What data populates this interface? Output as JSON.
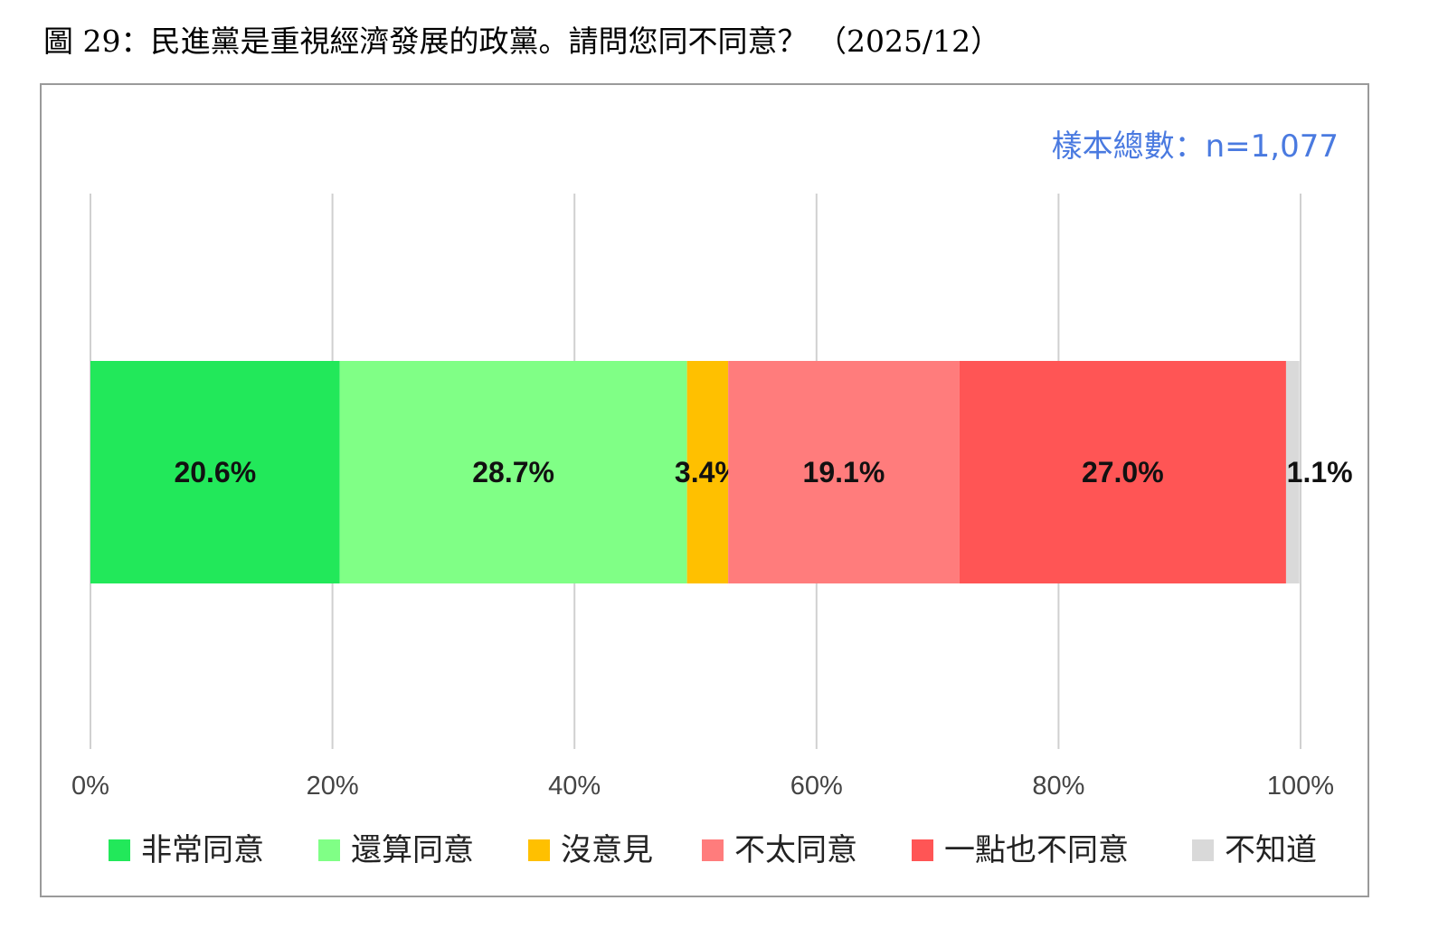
{
  "title": "圖 29：民進黨是重視經濟發展的政黨。請問您同不同意？ （2025/12）",
  "sample_label": "樣本總數：n=1,077",
  "chart_data": {
    "type": "bar",
    "orientation": "horizontal",
    "stacked": true,
    "xlim": [
      0,
      100
    ],
    "x_ticks": [
      "0%",
      "20%",
      "40%",
      "60%",
      "80%",
      "100%"
    ],
    "grid": true,
    "legend_position": "bottom",
    "series": [
      {
        "name": "非常同意",
        "value": 20.6,
        "label": "20.6%",
        "color": "#22e85a"
      },
      {
        "name": "還算同意",
        "value": 28.7,
        "label": "28.7%",
        "color": "#80ff86"
      },
      {
        "name": "沒意見",
        "value": 3.4,
        "label": "3.4%",
        "color": "#ffc000"
      },
      {
        "name": "不太同意",
        "value": 19.1,
        "label": "19.1%",
        "color": "#ff7c7c"
      },
      {
        "name": "一點也不同意",
        "value": 27.0,
        "label": "27.0%",
        "color": "#ff5555"
      },
      {
        "name": "不知道",
        "value": 1.1,
        "label": "1.1%",
        "color": "#d9d9d9"
      }
    ]
  }
}
